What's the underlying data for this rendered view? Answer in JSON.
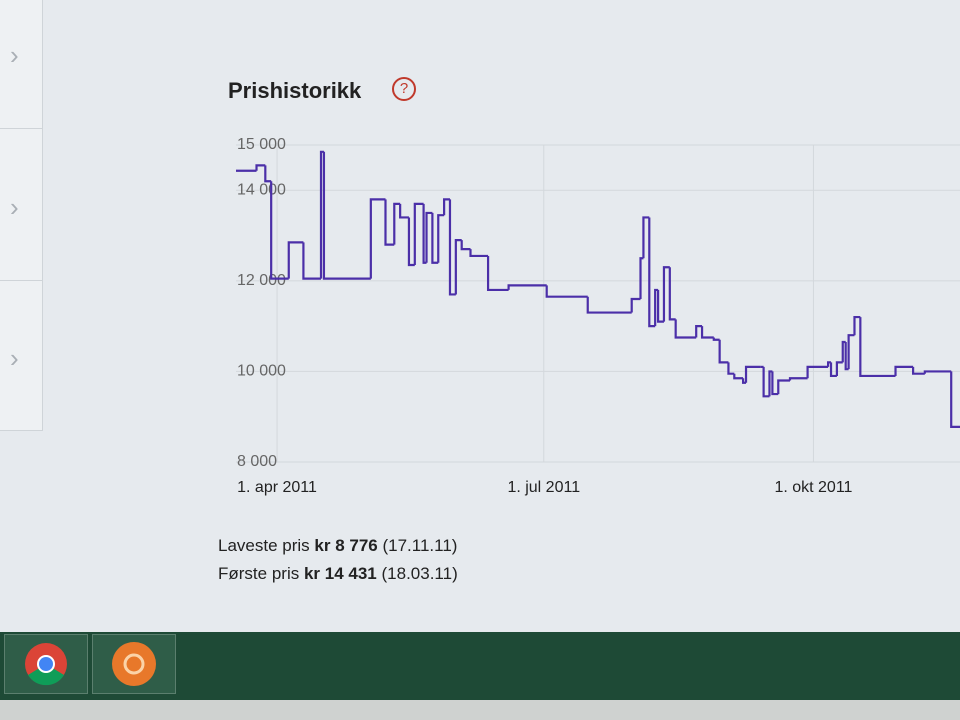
{
  "heading": "Prishistorikk",
  "chart_data": {
    "type": "line",
    "step": true,
    "grid": true,
    "color": "#4b2fa8",
    "x": [
      "2011-03-18",
      "2011-03-25",
      "2011-03-28",
      "2011-03-30",
      "2011-04-05",
      "2011-04-10",
      "2011-04-16",
      "2011-04-17",
      "2011-05-03",
      "2011-05-08",
      "2011-05-11",
      "2011-05-13",
      "2011-05-16",
      "2011-05-18",
      "2011-05-21",
      "2011-05-22",
      "2011-05-24",
      "2011-05-26",
      "2011-05-28",
      "2011-05-30",
      "2011-06-01",
      "2011-06-03",
      "2011-06-06",
      "2011-06-12",
      "2011-06-19",
      "2011-07-02",
      "2011-07-16",
      "2011-07-31",
      "2011-08-03",
      "2011-08-04",
      "2011-08-06",
      "2011-08-08",
      "2011-08-09",
      "2011-08-11",
      "2011-08-13",
      "2011-08-15",
      "2011-08-22",
      "2011-08-24",
      "2011-08-28",
      "2011-08-30",
      "2011-09-02",
      "2011-09-04",
      "2011-09-07",
      "2011-09-08",
      "2011-09-13",
      "2011-09-14",
      "2011-09-16",
      "2011-09-17",
      "2011-09-19",
      "2011-09-23",
      "2011-09-29",
      "2011-10-06",
      "2011-10-07",
      "2011-10-09",
      "2011-10-11",
      "2011-10-12",
      "2011-10-13",
      "2011-10-15",
      "2011-10-17",
      "2011-10-29",
      "2011-11-04",
      "2011-11-08",
      "2011-11-17"
    ],
    "values": [
      14431,
      14550,
      14200,
      12050,
      12850,
      12050,
      14850,
      12050,
      13800,
      12800,
      13700,
      13400,
      12350,
      13700,
      12400,
      13500,
      12400,
      13450,
      13800,
      11700,
      12900,
      12700,
      12550,
      11800,
      11900,
      11650,
      11300,
      11600,
      12500,
      13400,
      11000,
      11800,
      11100,
      12300,
      11150,
      10750,
      11000,
      10750,
      10700,
      10200,
      9950,
      9850,
      9750,
      10100,
      10100,
      9450,
      10000,
      9500,
      9800,
      9850,
      10100,
      10200,
      9900,
      10200,
      10650,
      10050,
      10800,
      11200,
      9900,
      10100,
      9950,
      10000,
      8776
    ],
    "xlim": [
      "2011-03-18",
      "2011-11-20"
    ],
    "xticks": [
      {
        "value": "2011-04-01",
        "label": "1. apr 2011"
      },
      {
        "value": "2011-07-01",
        "label": "1. jul 2011"
      },
      {
        "value": "2011-10-01",
        "label": "1. okt 2011"
      }
    ],
    "ylim": [
      8000,
      15000
    ],
    "yticks": [
      {
        "value": 8000,
        "label": "8 000"
      },
      {
        "value": 10000,
        "label": "10 000"
      },
      {
        "value": 12000,
        "label": "12 000"
      },
      {
        "value": 14000,
        "label": "14 000"
      },
      {
        "value": 15000,
        "label": "15 000"
      }
    ]
  },
  "summary": [
    {
      "label": "Laveste pris",
      "price": "kr 8 776",
      "date": "(17.11.11)"
    },
    {
      "label": "Første pris",
      "price": "kr 14 431",
      "date": "(18.03.11)"
    }
  ]
}
